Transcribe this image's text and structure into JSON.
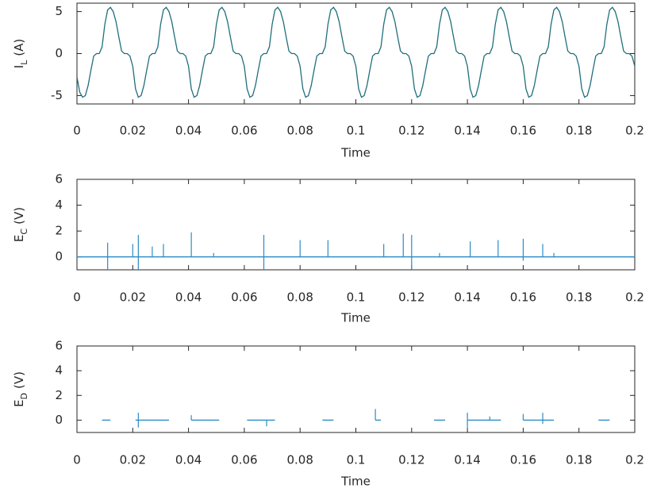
{
  "chart_data": [
    {
      "type": "line",
      "xlabel": "Time",
      "ylabel": {
        "symbol": "I",
        "subscript": "L",
        "unit": "(A)"
      },
      "xlim": [
        0,
        0.2
      ],
      "xticks": [
        0,
        0.02,
        0.04,
        0.06,
        0.08,
        0.1,
        0.12,
        0.14,
        0.16,
        0.18,
        0.2
      ],
      "ylim": [
        -6,
        6
      ],
      "yticks": [
        -5,
        0,
        5
      ],
      "line": {
        "color": "#1f6f7c",
        "x": [
          0,
          0.001,
          0.002,
          0.003,
          0.004,
          0.005,
          0.006,
          0.007,
          0.008,
          0.009,
          0.01,
          0.011,
          0.012,
          0.013,
          0.014,
          0.015,
          0.016,
          0.017,
          0.018,
          0.019,
          0.02,
          0.021,
          0.022,
          0.023,
          0.024,
          0.025,
          0.026,
          0.027,
          0.028,
          0.029,
          0.03,
          0.031,
          0.032,
          0.033,
          0.034,
          0.035,
          0.036,
          0.037,
          0.038,
          0.039,
          0.04,
          0.041,
          0.042,
          0.043,
          0.044,
          0.045,
          0.046,
          0.047,
          0.048,
          0.049,
          0.05,
          0.051,
          0.052,
          0.053,
          0.054,
          0.055,
          0.056,
          0.057,
          0.058,
          0.059,
          0.06,
          0.061,
          0.062,
          0.063,
          0.064,
          0.065,
          0.066,
          0.067,
          0.068,
          0.069,
          0.07,
          0.071,
          0.072,
          0.073,
          0.074,
          0.075,
          0.076,
          0.077,
          0.078,
          0.079,
          0.08,
          0.081,
          0.082,
          0.083,
          0.084,
          0.085,
          0.086,
          0.087,
          0.088,
          0.089,
          0.09,
          0.091,
          0.092,
          0.093,
          0.094,
          0.095,
          0.096,
          0.097,
          0.098,
          0.099,
          0.1,
          0.101,
          0.102,
          0.103,
          0.104,
          0.105,
          0.106,
          0.107,
          0.108,
          0.109,
          0.11,
          0.111,
          0.112,
          0.113,
          0.114,
          0.115,
          0.116,
          0.117,
          0.118,
          0.119,
          0.12,
          0.121,
          0.122,
          0.123,
          0.124,
          0.125,
          0.126,
          0.127,
          0.128,
          0.129,
          0.13,
          0.131,
          0.132,
          0.133,
          0.134,
          0.135,
          0.136,
          0.137,
          0.138,
          0.139,
          0.14,
          0.141,
          0.142,
          0.143,
          0.144,
          0.145,
          0.146,
          0.147,
          0.148,
          0.149,
          0.15,
          0.151,
          0.152,
          0.153,
          0.154,
          0.155,
          0.156,
          0.157,
          0.158,
          0.159,
          0.16,
          0.161,
          0.162,
          0.163,
          0.164,
          0.165,
          0.166,
          0.167,
          0.168,
          0.169,
          0.17,
          0.171,
          0.172,
          0.173,
          0.174,
          0.175,
          0.176,
          0.177,
          0.178,
          0.179,
          0.18,
          0.181,
          0.182,
          0.183,
          0.184,
          0.185,
          0.186,
          0.187,
          0.188,
          0.189,
          0.19,
          0.191,
          0.192,
          0.193,
          0.194,
          0.195,
          0.196,
          0.197,
          0.198,
          0.199,
          0.2
        ],
        "values": [
          -2.8,
          -4.6,
          -5.2,
          -5,
          -3.8,
          -2,
          -0.3,
          0,
          0,
          0.8,
          3.5,
          5.2,
          5.5,
          5,
          3.8,
          2,
          0.3,
          0,
          0,
          -0.3,
          -1.5,
          -4.2,
          -5.2,
          -5,
          -3.8,
          -2,
          -0.3,
          0,
          0,
          0.8,
          3.5,
          5.2,
          5.5,
          5,
          3.8,
          2,
          0.3,
          0,
          0,
          -0.3,
          -1.5,
          -4.2,
          -5.2,
          -5,
          -3.8,
          -2,
          -0.3,
          0,
          0,
          0.8,
          3.5,
          5.2,
          5.5,
          5,
          3.8,
          2,
          0.3,
          0,
          0,
          -0.3,
          -1.5,
          -4.2,
          -5.2,
          -5,
          -3.8,
          -2,
          -0.3,
          0,
          0,
          0.8,
          3.5,
          5.2,
          5.5,
          5,
          3.8,
          2,
          0.3,
          0,
          0,
          -0.3,
          -1.5,
          -4.2,
          -5.2,
          -5,
          -3.8,
          -2,
          -0.3,
          0,
          0,
          0.8,
          3.5,
          5.2,
          5.5,
          5,
          3.8,
          2,
          0.3,
          0,
          0,
          -0.3,
          -1.5,
          -4.2,
          -5.2,
          -5,
          -3.8,
          -2,
          -0.3,
          0,
          0,
          0.8,
          3.5,
          5.2,
          5.5,
          5,
          3.8,
          2,
          0.3,
          0,
          0,
          -0.3,
          -1.5,
          -4.2,
          -5.2,
          -5,
          -3.8,
          -2,
          -0.3,
          0,
          0,
          0.8,
          3.5,
          5.2,
          5.5,
          5,
          3.8,
          2,
          0.3,
          0,
          0,
          -0.3,
          -1.5,
          -4.2,
          -5.2,
          -5,
          -3.8,
          -2,
          -0.3,
          0,
          0,
          0.8,
          3.5,
          5.2,
          5.5,
          5,
          3.8,
          2,
          0.3,
          0,
          0,
          -0.3,
          -1.5,
          -4.2,
          -5.2,
          -5,
          -3.8,
          -2,
          -0.3,
          0,
          0,
          0.8,
          3.5,
          5.2,
          5.5,
          5,
          3.8,
          2,
          0.3,
          0,
          0,
          -0.3,
          -1.5,
          -4.2,
          -5.2,
          -5,
          -3.8,
          -2,
          -0.3,
          0,
          0,
          0.8,
          3.5,
          5.2,
          5.5,
          5,
          3.8,
          2,
          0.3,
          0,
          0,
          -0.3,
          -1.5
        ]
      }
    },
    {
      "type": "line",
      "xlabel": "Time",
      "ylabel": {
        "symbol": "E",
        "subscript": "C",
        "unit": "(V)"
      },
      "xlim": [
        0,
        0.2
      ],
      "xticks": [
        0,
        0.02,
        0.04,
        0.06,
        0.08,
        0.1,
        0.12,
        0.14,
        0.16,
        0.18,
        0.2
      ],
      "ylim": [
        -1,
        6
      ],
      "yticks": [
        0,
        2,
        4,
        6
      ],
      "line": {
        "color": "#2b8cc4",
        "x": [
          0,
          0.2
        ],
        "values": [
          0,
          0
        ]
      },
      "spikes": {
        "color": "#2b8cc4",
        "x": [
          0.011,
          0.011,
          0.02,
          0.022,
          0.022,
          0.027,
          0.031,
          0.041,
          0.049,
          0.067,
          0.067,
          0.08,
          0.09,
          0.11,
          0.117,
          0.12,
          0.12,
          0.13,
          0.141,
          0.151,
          0.16,
          0.16,
          0.167,
          0.171
        ],
        "values": [
          1.1,
          -1,
          1,
          1.7,
          -1,
          0.8,
          1,
          1.9,
          0.3,
          1.7,
          -1,
          1.3,
          1.3,
          1,
          1.8,
          1.7,
          -1,
          0.3,
          1.2,
          1.3,
          1.4,
          -0.3,
          1,
          0.3
        ]
      }
    },
    {
      "type": "line",
      "xlabel": "Time",
      "ylabel": {
        "symbol": "E",
        "subscript": "D",
        "unit": "(V)"
      },
      "xlim": [
        0,
        0.2
      ],
      "xticks": [
        0,
        0.02,
        0.04,
        0.06,
        0.08,
        0.1,
        0.12,
        0.14,
        0.16,
        0.18,
        0.2
      ],
      "ylim": [
        -1,
        6
      ],
      "yticks": [
        0,
        2,
        4,
        6
      ],
      "line": {
        "color": "#2b8cc4",
        "x": [
          0.009,
          0.012,
          0.0165,
          0.021,
          0.033,
          0.037,
          0.041,
          0.051,
          0.056,
          0.061,
          0.071,
          0.0795,
          0.088,
          0.092,
          0.0995,
          0.107,
          0.109,
          0.1185,
          0.128,
          0.132,
          0.136,
          0.14,
          0.152,
          0.156,
          0.16,
          0.171,
          0.179,
          0.187,
          0.191
        ],
        "values": [
          0,
          0,
          null,
          0,
          0,
          null,
          0,
          0,
          null,
          0,
          0,
          null,
          0,
          0,
          null,
          0,
          0,
          null,
          0,
          0,
          null,
          0,
          0,
          null,
          0,
          0,
          null,
          0,
          0
        ]
      },
      "spikes": {
        "color": "#2b8cc4",
        "x": [
          0.022,
          0.022,
          0.041,
          0.068,
          0.107,
          0.14,
          0.14,
          0.148,
          0.16,
          0.167,
          0.167
        ],
        "values": [
          0.6,
          -0.6,
          0.4,
          -0.5,
          0.9,
          0.6,
          -0.6,
          0.3,
          0.5,
          0.6,
          -0.3
        ]
      }
    }
  ]
}
